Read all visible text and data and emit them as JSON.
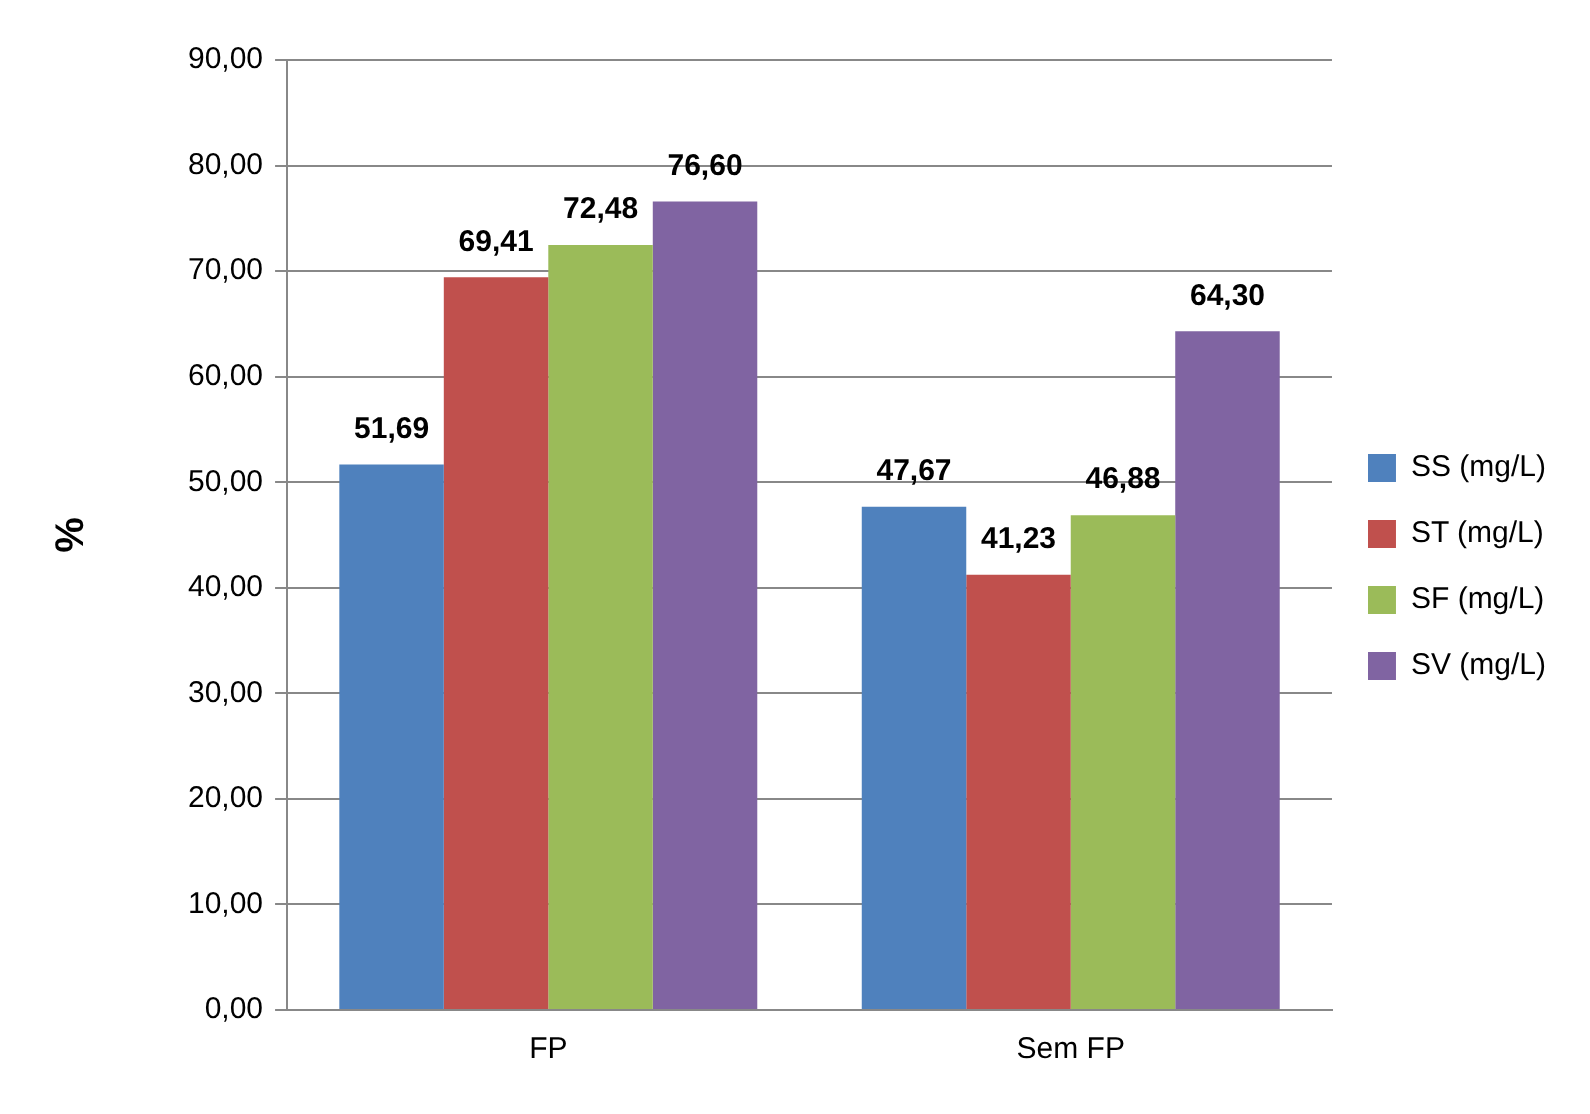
{
  "chart_data": {
    "type": "bar",
    "ylabel": "%",
    "categories": [
      "FP",
      "Sem FP"
    ],
    "series": [
      {
        "name": "SS (mg/L)",
        "color": "#4f81bd",
        "values": [
          51.69,
          47.67
        ],
        "value_labels": [
          "51,69",
          "47,67"
        ]
      },
      {
        "name": "ST (mg/L)",
        "color": "#c0504d",
        "values": [
          69.41,
          41.23
        ],
        "value_labels": [
          "69,41",
          "41,23"
        ]
      },
      {
        "name": "SF (mg/L)",
        "color": "#9bbb59",
        "values": [
          72.48,
          46.88
        ],
        "value_labels": [
          "72,48",
          "46,88"
        ]
      },
      {
        "name": "SV (mg/L)",
        "color": "#8064a2",
        "values": [
          76.6,
          64.3
        ],
        "value_labels": [
          "76,60",
          "64,30"
        ]
      }
    ],
    "ylim": [
      0,
      90
    ],
    "yticks": [
      {
        "value": 0,
        "label": "0,00"
      },
      {
        "value": 10,
        "label": "10,00"
      },
      {
        "value": 20,
        "label": "20,00"
      },
      {
        "value": 30,
        "label": "30,00"
      },
      {
        "value": 40,
        "label": "40,00"
      },
      {
        "value": 50,
        "label": "50,00"
      },
      {
        "value": 60,
        "label": "60,00"
      },
      {
        "value": 70,
        "label": "70,00"
      },
      {
        "value": 80,
        "label": "80,00"
      },
      {
        "value": 90,
        "label": "90,00"
      }
    ],
    "grid": "y",
    "legend": "right"
  }
}
